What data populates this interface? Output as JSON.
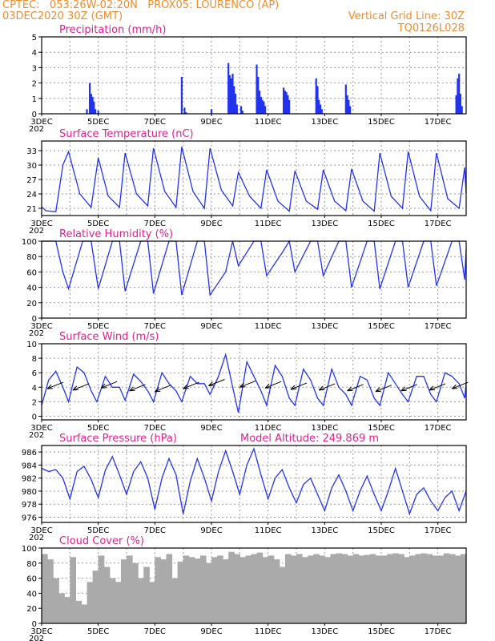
{
  "header": {
    "line1": "CPTEC:   053:26W-02:20N   PROX05: LOURENCO (AP)",
    "line2_left": "03DEC2020 30Z (GMT)",
    "line2_right": "Vertical Grid Line: 30Z",
    "line3_right": "TQ0126L028"
  },
  "colors": {
    "series": "#2233ee",
    "cloud": "#aaaaaa",
    "title": "#e0208c",
    "header": "#f08c28"
  },
  "x_axis": {
    "start_day": 3,
    "end_day": 18,
    "tick_labels": [
      "3DEC",
      "5DEC",
      "7DEC",
      "9DEC",
      "11DEC",
      "13DEC",
      "15DEC",
      "17DEC"
    ],
    "tick_days": [
      3,
      5,
      7,
      9,
      11,
      13,
      15,
      17
    ],
    "year_stub": "202"
  },
  "chart_data": [
    {
      "type": "bar",
      "title": "Precipitation (mm/h)",
      "ylim": [
        0,
        5
      ],
      "yticks": [
        0,
        1,
        2,
        3,
        4,
        5
      ],
      "grid": true,
      "x_days": [
        4.6,
        4.7,
        4.75,
        4.8,
        4.85,
        4.9,
        5.0,
        7.95,
        8.05,
        8.1,
        9.0,
        9.6,
        9.65,
        9.7,
        9.75,
        9.8,
        9.85,
        9.9,
        10.05,
        10.1,
        10.6,
        10.65,
        10.7,
        10.75,
        10.8,
        10.85,
        10.9,
        11.55,
        11.6,
        11.65,
        11.7,
        11.75,
        12.7,
        12.75,
        12.8,
        12.85,
        12.9,
        13.75,
        13.8,
        13.85,
        13.9,
        17.65,
        17.7,
        17.75,
        17.8,
        17.85
      ],
      "values": [
        0.3,
        2.0,
        1.3,
        1.1,
        0.8,
        0.3,
        0.2,
        2.4,
        0.4,
        0.1,
        0.3,
        3.3,
        2.5,
        2.3,
        2.6,
        1.8,
        1.3,
        0.6,
        0.5,
        0.2,
        3.2,
        2.4,
        1.5,
        1.1,
        0.9,
        0.8,
        0.5,
        1.7,
        1.5,
        1.4,
        1.2,
        0.9,
        2.3,
        1.8,
        0.9,
        0.6,
        0.3,
        1.9,
        1.2,
        0.9,
        0.5,
        1.2,
        2.3,
        2.6,
        1.3,
        0.5
      ]
    },
    {
      "type": "line",
      "title": "Surface Temperature (nC)",
      "ylim": [
        19.5,
        35
      ],
      "yticks": [
        21,
        24,
        27,
        30,
        33
      ],
      "grid": true,
      "x_days": [
        3.0,
        3.15,
        3.5,
        3.75,
        3.95,
        4.35,
        4.75,
        5.0,
        5.35,
        5.75,
        5.95,
        6.35,
        6.75,
        6.95,
        7.35,
        7.75,
        7.95,
        8.35,
        8.75,
        8.95,
        9.35,
        9.75,
        9.95,
        10.35,
        10.75,
        10.95,
        11.35,
        11.75,
        11.95,
        12.35,
        12.75,
        12.95,
        13.35,
        13.75,
        13.95,
        14.35,
        14.75,
        14.95,
        15.35,
        15.75,
        15.95,
        16.35,
        16.75,
        16.95,
        17.35,
        17.75,
        17.95,
        18.0
      ],
      "values": [
        21.3,
        20.5,
        20.3,
        30.0,
        32.8,
        24.0,
        21.2,
        31.5,
        23.6,
        21.2,
        32.5,
        24.0,
        21.5,
        33.5,
        24.5,
        21.2,
        33.8,
        24.5,
        21.0,
        33.5,
        24.8,
        21.5,
        28.5,
        23.5,
        21.0,
        29.0,
        22.5,
        20.4,
        28.8,
        22.5,
        20.8,
        29.0,
        22.5,
        20.5,
        29.2,
        22.5,
        20.4,
        32.5,
        23.5,
        21.0,
        32.8,
        23.5,
        20.5,
        32.5,
        23.0,
        21.0,
        29.5,
        24.0
      ]
    },
    {
      "type": "line",
      "title": "Relative Humidity (%)",
      "ylim": [
        0,
        100
      ],
      "yticks": [
        0,
        20,
        40,
        60,
        80,
        100
      ],
      "grid": true,
      "x_days": [
        3.0,
        3.25,
        3.5,
        3.75,
        3.95,
        4.45,
        4.75,
        5.0,
        5.5,
        5.75,
        5.95,
        6.5,
        6.75,
        6.95,
        7.5,
        7.75,
        7.95,
        8.5,
        8.75,
        8.95,
        9.5,
        9.75,
        9.95,
        10.5,
        10.75,
        10.95,
        11.5,
        11.75,
        11.95,
        12.5,
        12.75,
        12.95,
        13.5,
        13.75,
        13.95,
        14.5,
        14.75,
        14.95,
        15.5,
        15.75,
        15.95,
        16.5,
        16.75,
        16.95,
        17.5,
        17.75,
        17.95,
        18.0
      ],
      "values": [
        100,
        100,
        100,
        60,
        38,
        100,
        100,
        38,
        100,
        100,
        35,
        100,
        100,
        32,
        100,
        100,
        30,
        100,
        100,
        30,
        60,
        100,
        68,
        100,
        100,
        55,
        85,
        100,
        60,
        100,
        100,
        55,
        100,
        100,
        40,
        100,
        100,
        38,
        100,
        100,
        40,
        100,
        100,
        42,
        100,
        100,
        50,
        90
      ]
    },
    {
      "type": "line",
      "title": "Surface Wind (m/s)",
      "ylim": [
        -0.5,
        10
      ],
      "yticks": [
        0,
        2,
        4,
        6,
        8,
        10
      ],
      "grid": true,
      "x_days": [
        3.0,
        3.25,
        3.5,
        3.75,
        3.95,
        4.25,
        4.5,
        4.75,
        4.95,
        5.25,
        5.5,
        5.75,
        5.95,
        6.25,
        6.5,
        6.75,
        6.95,
        7.25,
        7.5,
        7.75,
        7.95,
        8.25,
        8.5,
        8.75,
        8.95,
        9.25,
        9.5,
        9.75,
        9.95,
        10.25,
        10.5,
        10.75,
        10.95,
        11.25,
        11.5,
        11.75,
        11.95,
        12.25,
        12.5,
        12.75,
        12.95,
        13.25,
        13.5,
        13.75,
        13.95,
        14.25,
        14.5,
        14.75,
        14.95,
        15.25,
        15.5,
        15.75,
        15.95,
        16.25,
        16.5,
        16.75,
        16.95,
        17.25,
        17.5,
        17.75,
        17.95,
        18.0
      ],
      "values": [
        1.5,
        5.0,
        6.2,
        4.0,
        2.0,
        6.8,
        6.0,
        3.5,
        2.0,
        5.5,
        4.0,
        4.0,
        2.2,
        5.8,
        4.8,
        3.5,
        2.0,
        6.0,
        4.5,
        3.5,
        2.0,
        5.5,
        4.5,
        4.5,
        3.0,
        5.5,
        8.5,
        4.0,
        0.5,
        7.5,
        5.5,
        3.5,
        1.5,
        7.0,
        5.5,
        2.5,
        1.5,
        6.5,
        5.0,
        2.5,
        1.5,
        6.5,
        4.0,
        3.0,
        1.5,
        5.5,
        5.0,
        2.5,
        1.5,
        6.0,
        4.5,
        3.0,
        2.0,
        5.5,
        5.5,
        3.0,
        2.0,
        6.0,
        5.5,
        4.5,
        2.5,
        4.5
      ],
      "arrow_days": [
        3.2,
        4.1,
        5.1,
        6.1,
        7.0,
        8.0,
        8.9,
        10.0,
        10.9,
        11.8,
        12.8,
        13.8,
        14.8,
        15.7,
        16.7,
        17.5
      ],
      "arrow_speeds": [
        3.8,
        3.6,
        3.9,
        3.5,
        3.4,
        3.8,
        4.2,
        4.0,
        3.9,
        3.7,
        3.6,
        3.5,
        3.4,
        3.5,
        3.6,
        3.8
      ]
    },
    {
      "type": "line",
      "title": "Surface Pressure (hPa)",
      "annotation": "Model Altitude: 249.869 m",
      "ylim": [
        975.2,
        987
      ],
      "yticks": [
        976,
        978,
        980,
        982,
        984,
        986
      ],
      "grid": true,
      "x_days": [
        3.0,
        3.25,
        3.5,
        3.75,
        4.0,
        4.25,
        4.5,
        4.75,
        5.0,
        5.25,
        5.5,
        5.75,
        6.0,
        6.25,
        6.5,
        6.75,
        7.0,
        7.25,
        7.5,
        7.75,
        8.0,
        8.25,
        8.5,
        8.75,
        9.0,
        9.25,
        9.5,
        9.75,
        10.0,
        10.25,
        10.5,
        10.75,
        11.0,
        11.25,
        11.5,
        11.75,
        12.0,
        12.25,
        12.5,
        12.75,
        13.0,
        13.25,
        13.5,
        13.75,
        14.0,
        14.25,
        14.5,
        14.75,
        15.0,
        15.25,
        15.5,
        15.75,
        16.0,
        16.25,
        16.5,
        16.75,
        17.0,
        17.25,
        17.5,
        17.75,
        18.0
      ],
      "values": [
        983.5,
        983.0,
        983.3,
        982.0,
        978.8,
        983.0,
        983.8,
        981.8,
        979.0,
        983.2,
        985.3,
        982.5,
        979.5,
        983.0,
        984.5,
        982.0,
        977.2,
        982.0,
        985.0,
        982.5,
        976.5,
        981.5,
        985.0,
        982.0,
        978.5,
        983.0,
        986.2,
        983.0,
        979.5,
        984.0,
        986.5,
        982.5,
        978.8,
        982.0,
        983.3,
        980.5,
        978.2,
        981.0,
        982.0,
        979.5,
        977.0,
        980.5,
        982.5,
        980.0,
        977.0,
        980.0,
        982.3,
        979.5,
        977.0,
        980.0,
        983.5,
        980.0,
        976.5,
        979.5,
        980.5,
        978.5,
        977.0,
        979.0,
        980.0,
        977.0,
        980.0
      ]
    },
    {
      "type": "bar",
      "title": "Cloud Cover (%)",
      "ylim": [
        0,
        100
      ],
      "yticks": [
        0,
        20,
        40,
        60,
        80,
        100
      ],
      "grid": true,
      "color": "#aaaaaa",
      "x_days": [
        3.0,
        3.2,
        3.4,
        3.6,
        3.8,
        4.0,
        4.2,
        4.4,
        4.6,
        4.8,
        5.0,
        5.2,
        5.4,
        5.6,
        5.8,
        6.0,
        6.2,
        6.4,
        6.6,
        6.8,
        7.0,
        7.2,
        7.4,
        7.6,
        7.8,
        8.0,
        8.2,
        8.4,
        8.6,
        8.8,
        9.0,
        9.2,
        9.4,
        9.6,
        9.8,
        10.0,
        10.2,
        10.4,
        10.6,
        10.8,
        11.0,
        11.2,
        11.4,
        11.6,
        11.8,
        12.0,
        12.2,
        12.4,
        12.6,
        12.8,
        13.0,
        13.2,
        13.4,
        13.6,
        13.8,
        14.0,
        14.2,
        14.4,
        14.6,
        14.8,
        15.0,
        15.2,
        15.4,
        15.6,
        15.8,
        16.0,
        16.2,
        16.4,
        16.6,
        16.8,
        17.0,
        17.2,
        17.4,
        17.6,
        17.8
      ],
      "values": [
        92,
        85,
        60,
        40,
        35,
        88,
        30,
        25,
        55,
        70,
        90,
        75,
        60,
        55,
        85,
        90,
        80,
        60,
        75,
        55,
        88,
        85,
        92,
        60,
        82,
        90,
        88,
        86,
        90,
        80,
        88,
        90,
        85,
        95,
        92,
        88,
        90,
        92,
        94,
        88,
        90,
        85,
        75,
        92,
        90,
        92,
        88,
        90,
        92,
        90,
        88,
        92,
        93,
        92,
        90,
        92,
        90,
        91,
        92,
        90,
        90,
        92,
        93,
        92,
        88,
        90,
        92,
        93,
        92,
        90,
        90,
        93,
        92,
        90,
        92
      ]
    }
  ]
}
